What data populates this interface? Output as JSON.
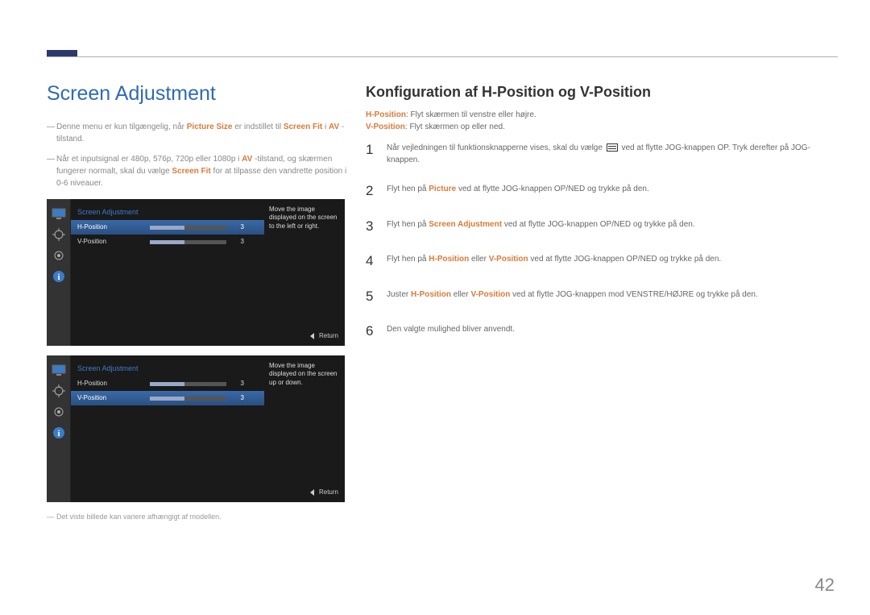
{
  "colors": {
    "accent_blue": "#2f6ab5",
    "accent_orange": "#d97a3a",
    "top_mark": "#2b3a6b",
    "osd_bg": "#1a1a1a",
    "osd_sidebar": "#333333",
    "osd_sel_grad_top": "#3a6aa8",
    "osd_sel_grad_bot": "#2a4f80",
    "osd_header": "#3a7cc8"
  },
  "page_title": "Screen Adjustment",
  "page_number": "42",
  "left_notes": {
    "note1": {
      "pre": "Denne menu er kun tilgængelig, når ",
      "b1": "Picture Size",
      "mid": " er indstillet til ",
      "b2": "Screen Fit",
      "post": " i ",
      "b3": "AV",
      "tail": "-tilstand."
    },
    "note2": {
      "pre": "Når et inputsignal er 480p, 576p, 720p eller 1080p i ",
      "b1": "AV",
      "mid": "-tilstand, og skærmen fungerer normalt, skal du vælge ",
      "b2": "Screen Fit",
      "post": " for at tilpasse den vandrette position i 0-6 niveauer."
    }
  },
  "osd1": {
    "header": "Screen Adjustment",
    "rows": [
      {
        "label": "H-Position",
        "value": "3",
        "fill_pct": 45,
        "selected": true
      },
      {
        "label": "V-Position",
        "value": "3",
        "fill_pct": 45,
        "selected": false
      }
    ],
    "help": "Move the image displayed on the screen to the left or right.",
    "return": "Return"
  },
  "osd2": {
    "header": "Screen Adjustment",
    "rows": [
      {
        "label": "H-Position",
        "value": "3",
        "fill_pct": 45,
        "selected": false
      },
      {
        "label": "V-Position",
        "value": "3",
        "fill_pct": 45,
        "selected": true
      }
    ],
    "help": "Move the image displayed on the screen up or down.",
    "return": "Return"
  },
  "footnote": "Det viste billede kan variere afhængigt af modellen.",
  "right": {
    "section_title": "Konfiguration af H-Position og V-Position",
    "desc1": {
      "b": "H-Position",
      "t": ": Flyt skærmen til venstre eller højre."
    },
    "desc2": {
      "b": "V-Position",
      "t": ": Flyt skærmen op eller ned."
    },
    "steps": {
      "s1_pre": "Når vejledningen til funktionsknapperne vises, skal du vælge ",
      "s1_post": " ved at flytte JOG-knappen OP. Tryk derefter på JOG-knappen.",
      "s2_pre": "Flyt hen på ",
      "s2_b": "Picture",
      "s2_post": " ved at flytte JOG-knappen OP/NED og trykke på den.",
      "s3_pre": "Flyt hen på ",
      "s3_b": "Screen Adjustment",
      "s3_post": " ved at flytte JOG-knappen OP/NED og trykke på den.",
      "s4_pre": "Flyt hen på ",
      "s4_b1": "H-Position",
      "s4_mid": " eller ",
      "s4_b2": "V-Position",
      "s4_post": " ved at flytte JOG-knappen OP/NED og trykke på den.",
      "s5_pre": "Juster ",
      "s5_b1": "H-Position",
      "s5_mid": " eller ",
      "s5_b2": "V-Position",
      "s5_post": " ved at flytte JOG-knappen mod VENSTRE/HØJRE og trykke på den.",
      "s6": "Den valgte mulighed bliver anvendt."
    }
  }
}
